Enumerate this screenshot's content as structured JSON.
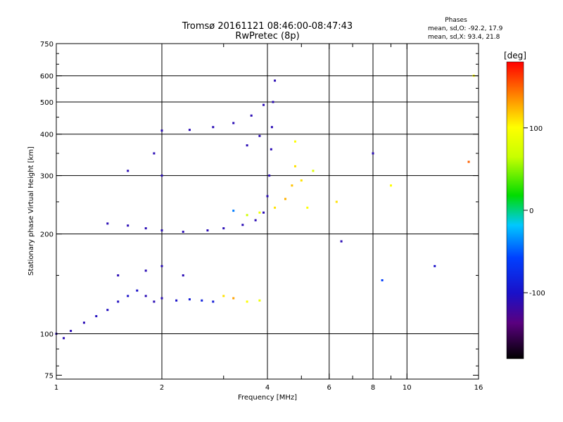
{
  "chart_data": {
    "type": "scatter",
    "title": "Tromsø 20161121 08:46:00-08:47:43",
    "subtitle": "RwPretec (8p)",
    "xlabel": "Frequency [MHz]",
    "ylabel": "Stationary phase Virtual Height [km]",
    "x_scale": "log",
    "y_scale": "log",
    "xlim": [
      1,
      16
    ],
    "ylim": [
      73,
      750
    ],
    "x_ticks": [
      1,
      2,
      4,
      6,
      8,
      10,
      16
    ],
    "x_tick_labels": [
      "1",
      "2",
      "4",
      "6",
      "8",
      "10",
      "16"
    ],
    "x_grid_lines": [
      2,
      4,
      6,
      8,
      10
    ],
    "x_minor_ticks": [
      3,
      5,
      7,
      9
    ],
    "y_ticks": [
      75,
      100,
      200,
      300,
      400,
      500,
      600,
      750
    ],
    "y_tick_labels": [
      "75",
      "100",
      "200",
      "300",
      "400",
      "500",
      "600",
      "750"
    ],
    "y_grid_lines": [
      100,
      200,
      300,
      400,
      500,
      600
    ],
    "grid": true,
    "info": {
      "heading": "Phases",
      "line_o": "mean, sd,O: -92.2, 17.9",
      "line_x": "mean, sd,X:  93.4, 21.8"
    },
    "colorbar": {
      "label": "[deg]",
      "range": [
        -180,
        180
      ],
      "ticks": [
        100,
        0,
        -100
      ],
      "tick_labels": [
        "100",
        "0",
        "-100"
      ],
      "colormap": "rainbow"
    },
    "series": [
      {
        "values": [
          {
            "x": 1.0,
            "y": 100,
            "c": -110
          },
          {
            "x": 1.05,
            "y": 97,
            "c": -110
          },
          {
            "x": 1.1,
            "y": 102,
            "c": -110
          },
          {
            "x": 1.2,
            "y": 108,
            "c": -110
          },
          {
            "x": 1.3,
            "y": 113,
            "c": -105
          },
          {
            "x": 1.4,
            "y": 118,
            "c": -105
          },
          {
            "x": 1.5,
            "y": 125,
            "c": -105
          },
          {
            "x": 1.6,
            "y": 130,
            "c": -100
          },
          {
            "x": 1.7,
            "y": 135,
            "c": -100
          },
          {
            "x": 1.8,
            "y": 130,
            "c": -110
          },
          {
            "x": 1.9,
            "y": 125,
            "c": -110
          },
          {
            "x": 2.0,
            "y": 128,
            "c": -110
          },
          {
            "x": 2.2,
            "y": 126,
            "c": -100
          },
          {
            "x": 2.4,
            "y": 127,
            "c": -90
          },
          {
            "x": 2.6,
            "y": 126,
            "c": -85
          },
          {
            "x": 2.8,
            "y": 125,
            "c": -90
          },
          {
            "x": 1.5,
            "y": 150,
            "c": -110
          },
          {
            "x": 1.8,
            "y": 155,
            "c": -110
          },
          {
            "x": 2.0,
            "y": 160,
            "c": -110
          },
          {
            "x": 2.3,
            "y": 150,
            "c": -110
          },
          {
            "x": 1.4,
            "y": 215,
            "c": -110
          },
          {
            "x": 1.6,
            "y": 212,
            "c": -110
          },
          {
            "x": 1.8,
            "y": 208,
            "c": -110
          },
          {
            "x": 2.0,
            "y": 205,
            "c": -110
          },
          {
            "x": 2.3,
            "y": 203,
            "c": -110
          },
          {
            "x": 2.7,
            "y": 205,
            "c": -110
          },
          {
            "x": 3.0,
            "y": 208,
            "c": -110
          },
          {
            "x": 3.4,
            "y": 213,
            "c": -110
          },
          {
            "x": 3.7,
            "y": 220,
            "c": -110
          },
          {
            "x": 3.9,
            "y": 232,
            "c": -110
          },
          {
            "x": 4.0,
            "y": 260,
            "c": -110
          },
          {
            "x": 4.05,
            "y": 300,
            "c": -110
          },
          {
            "x": 4.1,
            "y": 360,
            "c": -110
          },
          {
            "x": 4.12,
            "y": 420,
            "c": -110
          },
          {
            "x": 4.15,
            "y": 500,
            "c": -110
          },
          {
            "x": 4.2,
            "y": 580,
            "c": -110
          },
          {
            "x": 2.0,
            "y": 410,
            "c": -110
          },
          {
            "x": 2.4,
            "y": 412,
            "c": -110
          },
          {
            "x": 2.8,
            "y": 420,
            "c": -110
          },
          {
            "x": 3.2,
            "y": 432,
            "c": -110
          },
          {
            "x": 3.6,
            "y": 455,
            "c": -110
          },
          {
            "x": 3.9,
            "y": 490,
            "c": -110
          },
          {
            "x": 1.6,
            "y": 310,
            "c": -110
          },
          {
            "x": 2.0,
            "y": 300,
            "c": -110
          },
          {
            "x": 1.9,
            "y": 350,
            "c": -110
          },
          {
            "x": 3.5,
            "y": 370,
            "c": -110
          },
          {
            "x": 3.8,
            "y": 395,
            "c": -110
          },
          {
            "x": 3.2,
            "y": 235,
            "c": -40
          },
          {
            "x": 3.5,
            "y": 228,
            "c": 70
          },
          {
            "x": 3.8,
            "y": 232,
            "c": 90
          },
          {
            "x": 4.2,
            "y": 240,
            "c": 110
          },
          {
            "x": 4.5,
            "y": 255,
            "c": 125
          },
          {
            "x": 4.7,
            "y": 280,
            "c": 120
          },
          {
            "x": 4.8,
            "y": 320,
            "c": 110
          },
          {
            "x": 4.8,
            "y": 380,
            "c": 100
          },
          {
            "x": 5.0,
            "y": 290,
            "c": 110
          },
          {
            "x": 5.2,
            "y": 240,
            "c": 100
          },
          {
            "x": 5.4,
            "y": 310,
            "c": 80
          },
          {
            "x": 3.0,
            "y": 130,
            "c": 110
          },
          {
            "x": 3.2,
            "y": 128,
            "c": 130
          },
          {
            "x": 3.5,
            "y": 125,
            "c": 100
          },
          {
            "x": 3.8,
            "y": 126,
            "c": 90
          },
          {
            "x": 6.3,
            "y": 250,
            "c": 110
          },
          {
            "x": 6.5,
            "y": 190,
            "c": -110
          },
          {
            "x": 8.0,
            "y": 350,
            "c": -110
          },
          {
            "x": 8.5,
            "y": 145,
            "c": -60
          },
          {
            "x": 9.0,
            "y": 280,
            "c": 100
          },
          {
            "x": 12.0,
            "y": 160,
            "c": -100
          },
          {
            "x": 15.5,
            "y": 600,
            "c": 100
          },
          {
            "x": 15.0,
            "y": 330,
            "c": 150
          }
        ]
      }
    ]
  }
}
